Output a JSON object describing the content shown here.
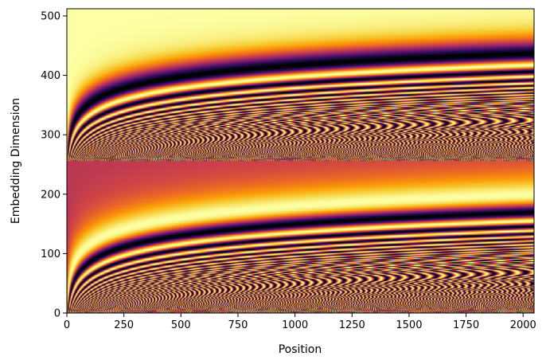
{
  "chart_data": {
    "type": "heatmap",
    "title": "",
    "xlabel": "Position",
    "ylabel": "Embedding Dimension",
    "xlim": [
      0,
      2048
    ],
    "ylim": [
      0,
      512
    ],
    "x_ticks": [
      0,
      250,
      500,
      750,
      1000,
      1250,
      1500,
      1750,
      2000
    ],
    "y_ticks": [
      0,
      100,
      200,
      300,
      400,
      500
    ],
    "n_positions": 2048,
    "n_dimensions": 512,
    "function": "sinusoidal positional encoding; dims 0-255 = sin(pos / 10000^(d/256)), dims 256-511 = cos(pos / 10000^((d-256)/256))",
    "value_range": [
      -1,
      1
    ],
    "colormap": "inferno",
    "colormap_stops": [
      "#000004",
      "#1b0c41",
      "#4a0c6b",
      "#781c6d",
      "#a52c60",
      "#cf4446",
      "#ed6925",
      "#fb9b06",
      "#f7d13d",
      "#fcffa4"
    ],
    "colorbar": false,
    "grid": false
  }
}
